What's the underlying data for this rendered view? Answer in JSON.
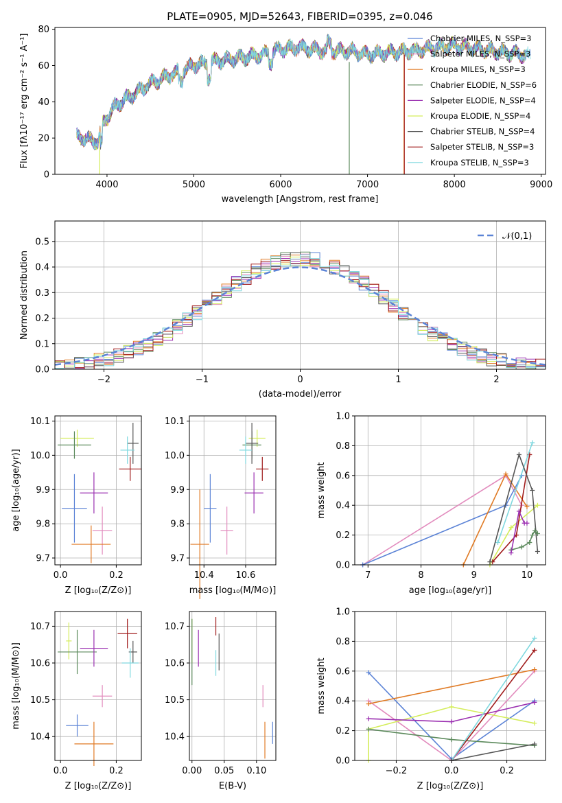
{
  "chart_data": [
    {
      "id": "spectrum",
      "type": "line",
      "title": "PLATE=0905, MJD=52643, FIBERID=0395, z=0.046",
      "xlabel": "wavelength [Angstrom, rest frame]",
      "ylabel": "Flux [fλ10⁻¹⁷ erg cm⁻² s⁻¹ A⁻¹]",
      "xlim": [
        3400,
        9050
      ],
      "ylim": [
        0,
        81
      ],
      "xticks": [
        4000,
        5000,
        6000,
        7000,
        8000,
        9000
      ],
      "yticks": [
        0,
        20,
        40,
        60,
        80
      ],
      "grid": false,
      "legend_position": "top-right",
      "series": [
        {
          "name": "Chabrier MILES, N_SSP=3"
        },
        {
          "name": "Salpeter MILES, N_SSP=3"
        },
        {
          "name": "Kroupa MILES, N_SSP=3"
        },
        {
          "name": "Chabrier ELODIE, N_SSP=6"
        },
        {
          "name": "Salpeter ELODIE, N_SSP=4"
        },
        {
          "name": "Kroupa ELODIE, N_SSP=4"
        },
        {
          "name": "Chabrier STELIB, N_SSP=4"
        },
        {
          "name": "Salpeter STELIB, N_SSP=3"
        },
        {
          "name": "Kroupa STELIB, N_SSP=3"
        }
      ],
      "continuum": {
        "x": [
          3650,
          3900,
          3950,
          4100,
          4300,
          4500,
          4800,
          5000,
          5200,
          5500,
          5800,
          6000,
          6200,
          6500,
          6800,
          7000,
          7200,
          7500,
          7800,
          8000,
          8300,
          8600,
          8800,
          8900
        ],
        "y": [
          21,
          18,
          28,
          38,
          44,
          50,
          56,
          60,
          62,
          64,
          66,
          69,
          70,
          68,
          68,
          66,
          67,
          68,
          70,
          71,
          69,
          67,
          66,
          65
        ]
      }
    },
    {
      "id": "residuals",
      "type": "histogram",
      "xlabel": "(data-model)/error",
      "ylabel": "Normed distribution",
      "xlim": [
        -2.5,
        2.5
      ],
      "ylim": [
        0,
        0.58
      ],
      "xticks": [
        -2,
        -1,
        0,
        1,
        2
      ],
      "yticks": [
        0.0,
        0.1,
        0.2,
        0.3,
        0.4,
        0.5
      ],
      "grid": true,
      "bin_width": 0.1,
      "legend_position": "top-right",
      "reference": {
        "name": "𝒩(0,1)",
        "type": "gaussian",
        "mean": 0,
        "sigma": 1
      }
    },
    {
      "id": "age_vs_Z",
      "type": "errorbar",
      "xlabel": "Z [log₁₀(Z/Z⊙)]",
      "ylabel": "age  [log₁₀(age/yr)]",
      "xlim": [
        -0.02,
        0.29
      ],
      "ylim": [
        9.68,
        10.115
      ],
      "xticks": [
        0.0,
        0.2
      ],
      "yticks": [
        9.7,
        9.8,
        9.9,
        10.0,
        10.1
      ],
      "grid": true,
      "points": [
        {
          "x": 0.06,
          "y": 10.05,
          "xerr": 0.06,
          "yerr": 0.025,
          "color": "#d4ed5a"
        },
        {
          "x": 0.05,
          "y": 10.03,
          "xerr": 0.06,
          "yerr": 0.04,
          "color": "#5c8a5c"
        },
        {
          "x": 0.26,
          "y": 10.035,
          "xerr": 0.02,
          "yerr": 0.06,
          "color": "#555555"
        },
        {
          "x": 0.24,
          "y": 10.015,
          "xerr": 0.025,
          "yerr": 0.04,
          "color": "#7fd8df"
        },
        {
          "x": 0.25,
          "y": 9.96,
          "xerr": 0.04,
          "yerr": 0.035,
          "color": "#a01b1b"
        },
        {
          "x": 0.12,
          "y": 9.89,
          "xerr": 0.05,
          "yerr": 0.06,
          "color": "#9a2eb0"
        },
        {
          "x": 0.05,
          "y": 9.845,
          "xerr": 0.045,
          "yerr": 0.1,
          "color": "#5b83d6"
        },
        {
          "x": 0.15,
          "y": 9.78,
          "xerr": 0.035,
          "yerr": 0.07,
          "color": "#e28bbd"
        },
        {
          "x": 0.11,
          "y": 9.74,
          "xerr": 0.07,
          "yerr": 0.055,
          "color": "#e07a24"
        }
      ]
    },
    {
      "id": "age_vs_mass",
      "type": "errorbar",
      "xlabel": "mass [log₁₀(M/M⊙)]",
      "ylabel": "",
      "xlim": [
        10.33,
        10.745
      ],
      "ylim": [
        9.68,
        10.115
      ],
      "xticks": [
        10.4,
        10.6
      ],
      "yticks": [
        9.7,
        9.8,
        9.9,
        10.0,
        10.1
      ],
      "grid": true,
      "points": [
        {
          "x": 10.655,
          "y": 10.05,
          "xerr": 0.04,
          "yerr": 0.025,
          "color": "#d4ed5a"
        },
        {
          "x": 10.63,
          "y": 10.03,
          "xerr": 0.045,
          "yerr": 0.04,
          "color": "#5c8a5c"
        },
        {
          "x": 10.63,
          "y": 10.035,
          "xerr": 0.03,
          "yerr": 0.06,
          "color": "#555555"
        },
        {
          "x": 10.6,
          "y": 10.015,
          "xerr": 0.03,
          "yerr": 0.04,
          "color": "#7fd8df"
        },
        {
          "x": 10.68,
          "y": 9.96,
          "xerr": 0.03,
          "yerr": 0.035,
          "color": "#a01b1b"
        },
        {
          "x": 10.64,
          "y": 9.89,
          "xerr": 0.045,
          "yerr": 0.06,
          "color": "#9a2eb0"
        },
        {
          "x": 10.43,
          "y": 9.845,
          "xerr": 0.03,
          "yerr": 0.1,
          "color": "#5b83d6"
        },
        {
          "x": 10.51,
          "y": 9.78,
          "xerr": 0.03,
          "yerr": 0.07,
          "color": "#e28bbd"
        },
        {
          "x": 10.38,
          "y": 9.74,
          "xerr": 0.045,
          "yerr": 0.16,
          "color": "#e07a24"
        }
      ]
    },
    {
      "id": "weight_vs_age",
      "type": "line",
      "xlabel": "age  [log₁₀(age/yr)]",
      "ylabel": "mass weight",
      "xlim": [
        6.75,
        10.35
      ],
      "ylim": [
        0,
        1
      ],
      "xticks": [
        7,
        8,
        9,
        10
      ],
      "yticks": [
        0.0,
        0.2,
        0.4,
        0.6,
        0.8,
        1.0
      ],
      "grid": true,
      "series": [
        {
          "x": [
            6.9,
            9.6,
            9.9
          ],
          "y": [
            0.0,
            0.6,
            0.4
          ],
          "color": "#e28bbd"
        },
        {
          "x": [
            6.9,
            9.6,
            9.9
          ],
          "y": [
            0.0,
            0.4,
            0.6
          ],
          "color": "#5b83d6"
        },
        {
          "x": [
            8.8,
            9.6,
            10.0
          ],
          "y": [
            0.0,
            0.61,
            0.39
          ],
          "color": "#e07a24"
        },
        {
          "x": [
            9.3,
            9.7,
            10.2
          ],
          "y": [
            0.0,
            0.25,
            0.4
          ],
          "color": "#d4ed5a"
        },
        {
          "x": [
            9.35,
            9.8,
            10.05
          ],
          "y": [
            0.02,
            0.2,
            0.74
          ],
          "color": "#a01b1b"
        },
        {
          "x": [
            9.45,
            10.1
          ],
          "y": [
            0.15,
            0.82
          ],
          "color": "#7fd8df"
        },
        {
          "x": [
            9.3,
            9.85,
            10.1,
            10.2
          ],
          "y": [
            0.02,
            0.74,
            0.5,
            0.09
          ],
          "color": "#555555"
        },
        {
          "x": [
            9.7,
            9.9,
            10.05,
            10.1,
            10.15,
            10.2
          ],
          "y": [
            0.1,
            0.12,
            0.15,
            0.2,
            0.23,
            0.21
          ],
          "color": "#5c8a5c"
        },
        {
          "x": [
            9.7,
            9.85,
            9.95,
            10.0
          ],
          "y": [
            0.08,
            0.36,
            0.28,
            0.28
          ],
          "color": "#9a2eb0"
        }
      ]
    },
    {
      "id": "mass_vs_Z",
      "type": "errorbar",
      "xlabel": "Z [log₁₀(Z/Z⊙)]",
      "ylabel": "mass [log₁₀(M/M⊙)]",
      "xlim": [
        -0.02,
        0.29
      ],
      "ylim": [
        10.335,
        10.74
      ],
      "xticks": [
        0.0,
        0.2
      ],
      "yticks": [
        10.4,
        10.5,
        10.6,
        10.7
      ],
      "grid": true,
      "points": [
        {
          "x": 0.03,
          "y": 10.66,
          "xerr": 0.01,
          "yerr": 0.05,
          "color": "#d4ed5a"
        },
        {
          "x": 0.06,
          "y": 10.63,
          "xerr": 0.07,
          "yerr": 0.06,
          "color": "#5c8a5c"
        },
        {
          "x": 0.26,
          "y": 10.63,
          "xerr": 0.015,
          "yerr": 0.03,
          "color": "#555555"
        },
        {
          "x": 0.25,
          "y": 10.6,
          "xerr": 0.03,
          "yerr": 0.04,
          "color": "#7fd8df"
        },
        {
          "x": 0.24,
          "y": 10.68,
          "xerr": 0.035,
          "yerr": 0.04,
          "color": "#a01b1b"
        },
        {
          "x": 0.12,
          "y": 10.64,
          "xerr": 0.05,
          "yerr": 0.05,
          "color": "#9a2eb0"
        },
        {
          "x": 0.06,
          "y": 10.43,
          "xerr": 0.04,
          "yerr": 0.03,
          "color": "#5b83d6"
        },
        {
          "x": 0.15,
          "y": 10.51,
          "xerr": 0.035,
          "yerr": 0.03,
          "color": "#e28bbd"
        },
        {
          "x": 0.12,
          "y": 10.38,
          "xerr": 0.07,
          "yerr": 0.06,
          "color": "#e07a24"
        }
      ]
    },
    {
      "id": "mass_vs_EBV",
      "type": "errorbar",
      "xlabel": "E(B-V)",
      "ylabel": "",
      "xlim": [
        -0.004,
        0.13
      ],
      "ylim": [
        10.335,
        10.74
      ],
      "xticks": [
        0.0,
        0.05,
        0.1
      ],
      "yticks": [
        10.4,
        10.5,
        10.6,
        10.7
      ],
      "grid": true,
      "points": [
        {
          "x": 0.0,
          "y": 10.66,
          "xerr": 0.0,
          "yerr": 0.06,
          "color": "#d4ed5a"
        },
        {
          "x": 0.0,
          "y": 10.63,
          "xerr": 0.0,
          "yerr": 0.09,
          "color": "#5c8a5c"
        },
        {
          "x": 0.042,
          "y": 10.63,
          "xerr": 0.0,
          "yerr": 0.05,
          "color": "#555555"
        },
        {
          "x": 0.037,
          "y": 10.6,
          "xerr": 0.0,
          "yerr": 0.035,
          "color": "#7fd8df"
        },
        {
          "x": 0.037,
          "y": 10.7,
          "xerr": 0.0,
          "yerr": 0.025,
          "color": "#a01b1b"
        },
        {
          "x": 0.01,
          "y": 10.64,
          "xerr": 0.0,
          "yerr": 0.05,
          "color": "#9a2eb0"
        },
        {
          "x": 0.125,
          "y": 10.41,
          "xerr": 0.0,
          "yerr": 0.03,
          "color": "#5b83d6"
        },
        {
          "x": 0.11,
          "y": 10.51,
          "xerr": 0.0,
          "yerr": 0.03,
          "color": "#e28bbd"
        },
        {
          "x": 0.113,
          "y": 10.39,
          "xerr": 0.0,
          "yerr": 0.05,
          "color": "#e07a24"
        }
      ]
    },
    {
      "id": "weight_vs_Z",
      "type": "line",
      "xlabel": "Z [log₁₀(Z/Z⊙)]",
      "ylabel": "mass weight",
      "xlim": [
        -0.35,
        0.34
      ],
      "ylim": [
        0,
        1
      ],
      "xticks": [
        -0.2,
        0.0,
        0.2
      ],
      "yticks": [
        0.0,
        0.2,
        0.4,
        0.6,
        0.8,
        1.0
      ],
      "grid": true,
      "series": [
        {
          "x": [
            -0.3,
            0.0,
            0.3
          ],
          "y": [
            0.59,
            0.01,
            0.4
          ],
          "color": "#5b83d6"
        },
        {
          "x": [
            -0.3,
            0.0,
            0.3
          ],
          "y": [
            0.4,
            0.0,
            0.6
          ],
          "color": "#e28bbd"
        },
        {
          "x": [
            -0.3,
            0.3
          ],
          "y": [
            0.38,
            0.61
          ],
          "color": "#e07a24"
        },
        {
          "x": [
            -0.3,
            -0.3,
            0.0,
            0.3
          ],
          "y": [
            0.0,
            0.21,
            0.36,
            0.25
          ],
          "color": "#d4ed5a"
        },
        {
          "x": [
            -0.3,
            0.0,
            0.3
          ],
          "y": [
            0.28,
            0.26,
            0.39
          ],
          "color": "#9a2eb0"
        },
        {
          "x": [
            -0.3,
            0.0,
            0.3
          ],
          "y": [
            0.21,
            0.14,
            0.1
          ],
          "color": "#5c8a5c"
        },
        {
          "x": [
            0.0,
            0.3
          ],
          "y": [
            0.0,
            0.74
          ],
          "color": "#a01b1b"
        },
        {
          "x": [
            0.0,
            0.3
          ],
          "y": [
            0.0,
            0.82
          ],
          "color": "#7fd8df"
        },
        {
          "x": [
            0.0,
            0.3
          ],
          "y": [
            0.0,
            0.11
          ],
          "color": "#555555"
        }
      ]
    }
  ],
  "series_colors": [
    "#5b83d6",
    "#e28bbd",
    "#e07a24",
    "#5c8a5c",
    "#9a2eb0",
    "#d4ed5a",
    "#555555",
    "#a01b1b",
    "#7fd8df"
  ],
  "reference_color": "#5b83d6"
}
